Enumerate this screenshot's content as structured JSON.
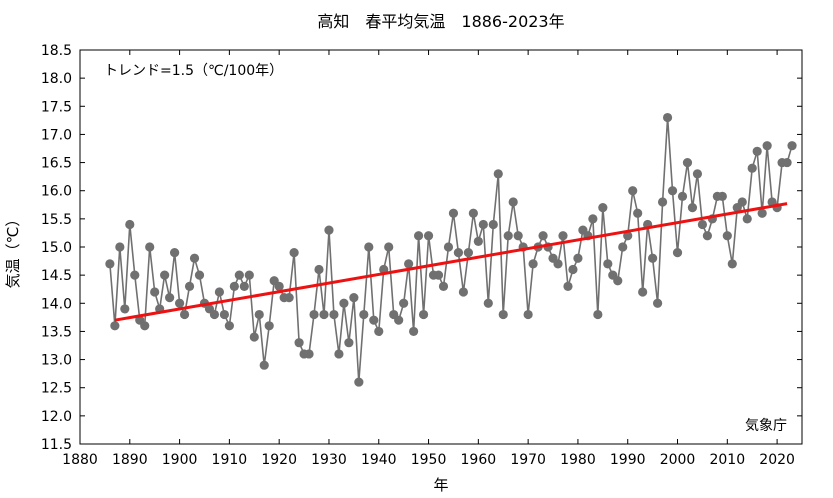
{
  "chart_data": {
    "type": "line",
    "title": "高知　春平均気温　1886-2023年",
    "xlabel": "年",
    "ylabel": "気温（℃）",
    "trend_label": "トレンド=1.5（℃/100年）",
    "source_label": "気象庁",
    "xlim": [
      1880,
      2025
    ],
    "ylim": [
      11.5,
      18.5
    ],
    "x_ticks": [
      1880,
      1890,
      1900,
      1910,
      1920,
      1930,
      1940,
      1950,
      1960,
      1970,
      1980,
      1990,
      2000,
      2010,
      2020
    ],
    "y_ticks": [
      "11.5",
      "12.0",
      "12.5",
      "13.0",
      "13.5",
      "14.0",
      "14.5",
      "15.0",
      "15.5",
      "16.0",
      "16.5",
      "17.0",
      "17.5",
      "18.0",
      "18.5"
    ],
    "grid": false,
    "series": [
      {
        "type": "line-markers",
        "color": "#707070",
        "x": [
          1886,
          1887,
          1888,
          1889,
          1890,
          1891,
          1892,
          1893,
          1894,
          1895,
          1896,
          1897,
          1898,
          1899,
          1900,
          1901,
          1902,
          1903,
          1904,
          1905,
          1906,
          1907,
          1908,
          1909,
          1910,
          1911,
          1912,
          1913,
          1914,
          1915,
          1916,
          1917,
          1918,
          1919,
          1920,
          1921,
          1922,
          1923,
          1924,
          1925,
          1926,
          1927,
          1928,
          1929,
          1930,
          1931,
          1932,
          1933,
          1934,
          1935,
          1936,
          1937,
          1938,
          1939,
          1940,
          1941,
          1942,
          1943,
          1944,
          1945,
          1946,
          1947,
          1948,
          1949,
          1950,
          1951,
          1952,
          1953,
          1954,
          1955,
          1956,
          1957,
          1958,
          1959,
          1960,
          1961,
          1962,
          1963,
          1964,
          1965,
          1966,
          1967,
          1968,
          1969,
          1970,
          1971,
          1972,
          1973,
          1974,
          1975,
          1976,
          1977,
          1978,
          1979,
          1980,
          1981,
          1982,
          1983,
          1984,
          1985,
          1986,
          1987,
          1988,
          1989,
          1990,
          1991,
          1992,
          1993,
          1994,
          1995,
          1996,
          1997,
          1998,
          1999,
          2000,
          2001,
          2002,
          2003,
          2004,
          2005,
          2006,
          2007,
          2008,
          2009,
          2010,
          2011,
          2012,
          2013,
          2014,
          2015,
          2016,
          2017,
          2018,
          2019,
          2020,
          2021,
          2022,
          2023
        ],
        "y": [
          14.7,
          13.6,
          15.0,
          13.9,
          15.4,
          14.5,
          13.7,
          13.6,
          15.0,
          14.2,
          13.9,
          14.5,
          14.1,
          14.9,
          14.0,
          13.8,
          14.3,
          14.8,
          14.5,
          14.0,
          13.9,
          13.8,
          14.2,
          13.8,
          13.6,
          14.3,
          14.5,
          14.3,
          14.5,
          13.4,
          13.8,
          12.9,
          13.6,
          14.4,
          14.3,
          14.1,
          14.1,
          14.9,
          13.3,
          13.1,
          13.1,
          13.8,
          14.6,
          13.8,
          15.3,
          13.8,
          13.1,
          14.0,
          13.3,
          14.1,
          12.6,
          13.8,
          15.0,
          13.7,
          13.5,
          14.6,
          15.0,
          13.8,
          13.7,
          14.0,
          14.7,
          13.5,
          15.2,
          13.8,
          15.2,
          14.5,
          14.5,
          14.3,
          15.0,
          15.6,
          14.9,
          14.2,
          14.9,
          15.6,
          15.1,
          15.4,
          14.0,
          15.4,
          16.3,
          13.8,
          15.2,
          15.8,
          15.2,
          15.0,
          13.8,
          14.7,
          15.0,
          15.2,
          15.0,
          14.8,
          14.7,
          15.2,
          14.3,
          14.6,
          14.8,
          15.3,
          15.2,
          15.5,
          13.8,
          15.7,
          14.7,
          14.5,
          14.4,
          15.0,
          15.2,
          16.0,
          15.6,
          14.2,
          15.4,
          14.8,
          14.0,
          15.8,
          17.3,
          16.0,
          14.9,
          15.9,
          16.5,
          15.7,
          16.3,
          15.4,
          15.2,
          15.5,
          15.9,
          15.9,
          15.2,
          14.7,
          15.7,
          15.8,
          15.5,
          16.4,
          16.7,
          15.6,
          16.8,
          15.8,
          15.7,
          16.5,
          16.5,
          16.8
        ]
      },
      {
        "type": "trend",
        "color": "#ee1111",
        "x": [
          1887,
          2022
        ],
        "y": [
          13.7,
          15.77
        ]
      }
    ]
  }
}
